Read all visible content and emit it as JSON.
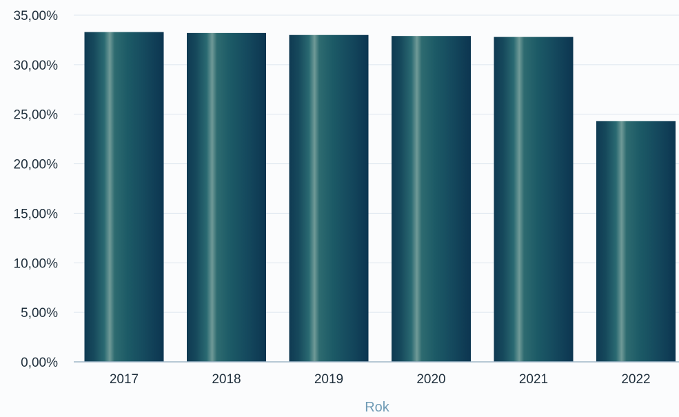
{
  "chart_data": {
    "type": "bar",
    "categories": [
      "2017",
      "2018",
      "2019",
      "2020",
      "2021",
      "2022"
    ],
    "values": [
      33.3,
      33.2,
      33.0,
      32.9,
      32.8,
      24.3
    ],
    "title": "",
    "xlabel": "Rok",
    "ylabel": "",
    "ylim": [
      0,
      35
    ],
    "y_ticks": [
      0,
      5,
      10,
      15,
      20,
      25,
      30,
      35
    ],
    "y_tick_labels": [
      "0,00%",
      "5,00%",
      "10,00%",
      "15,00%",
      "20,00%",
      "25,00%",
      "30,00%",
      "35,00%"
    ],
    "grid": true,
    "legend": "none",
    "colors": {
      "bar_dark": "#0f3a52",
      "bar_mid": "#1c5a66",
      "bar_light": "#6f9a97",
      "grid": "#dde6ee",
      "axis_title": "#6f9bb5"
    }
  }
}
